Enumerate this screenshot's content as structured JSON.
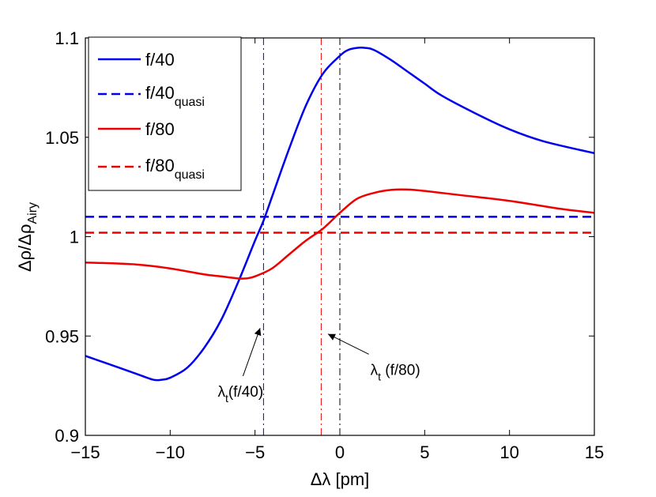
{
  "chart_data": {
    "type": "line",
    "xlabel_prefix": "Δλ",
    "xlabel_suffix": " [pm]",
    "ylabel_main": "Δρ/Δρ",
    "ylabel_sub": "Airy",
    "xlim": [
      -15,
      15
    ],
    "ylim": [
      0.9,
      1.1
    ],
    "xticks": [
      -15,
      -10,
      -5,
      0,
      5,
      10,
      15
    ],
    "xtick_labels": [
      "−15",
      "−10",
      "−5",
      "0",
      "5",
      "10",
      "15"
    ],
    "yticks": [
      0.9,
      0.95,
      1.0,
      1.05,
      1.1
    ],
    "ytick_labels": [
      "0.9",
      "0.95",
      "1",
      "1.05",
      "1.1"
    ],
    "series": [
      {
        "name": "f/40",
        "name_sub": "",
        "color": "#0000ee",
        "style": "solid",
        "x": [
          -15,
          -13,
          -12,
          -11,
          -10.5,
          -10,
          -9,
          -8,
          -7,
          -6,
          -5,
          -4.5,
          -4,
          -3,
          -2,
          -1,
          0,
          0.5,
          1,
          1.5,
          2,
          3,
          4,
          5,
          6,
          8,
          10,
          12,
          15
        ],
        "y": [
          0.94,
          0.934,
          0.931,
          0.928,
          0.928,
          0.929,
          0.934,
          0.944,
          0.958,
          0.977,
          0.998,
          1.008,
          1.02,
          1.044,
          1.066,
          1.082,
          1.091,
          1.094,
          1.095,
          1.095,
          1.094,
          1.089,
          1.083,
          1.077,
          1.071,
          1.062,
          1.054,
          1.048,
          1.042
        ]
      },
      {
        "name": "f/40",
        "name_sub": "quasi",
        "color": "#0000ee",
        "style": "dashed",
        "x": [
          -15,
          15
        ],
        "y": [
          1.01,
          1.01
        ]
      },
      {
        "name": "f/80",
        "name_sub": "",
        "color": "#ee0000",
        "style": "solid",
        "x": [
          -15,
          -12,
          -10,
          -8,
          -7,
          -6,
          -5.5,
          -5,
          -4,
          -3,
          -2,
          -1,
          0,
          1,
          2,
          3,
          4,
          5,
          7,
          10,
          13,
          15
        ],
        "y": [
          0.987,
          0.986,
          0.984,
          0.981,
          0.98,
          0.979,
          0.979,
          0.98,
          0.984,
          0.991,
          0.998,
          1.004,
          1.012,
          1.019,
          1.022,
          1.0235,
          1.0237,
          1.023,
          1.021,
          1.018,
          1.014,
          1.012
        ]
      },
      {
        "name": "f/80",
        "name_sub": "quasi",
        "color": "#ee0000",
        "style": "dashed",
        "x": [
          -15,
          15
        ],
        "y": [
          1.002,
          1.002
        ]
      }
    ],
    "vlines": [
      {
        "x": -4.5,
        "color": "#0000ee",
        "style": "dashdot"
      },
      {
        "x": -1.1,
        "color": "#ee0000",
        "style": "dashdot"
      },
      {
        "x": 0,
        "color": "#000000",
        "style": "dashdot"
      }
    ],
    "annotations": [
      {
        "label": "λ",
        "label_sub": "t",
        "label_after": "(f/40)",
        "text_x": -7.2,
        "text_y": 0.9195,
        "arrow_to_x": -4.7,
        "arrow_to_y": 0.954
      },
      {
        "label": "λ",
        "label_sub": "t",
        "label_after": " (f/80)",
        "text_x": 1.8,
        "text_y": 0.9305,
        "arrow_to_x": -0.7,
        "arrow_to_y": 0.951
      }
    ],
    "legend_location": "top-left"
  }
}
